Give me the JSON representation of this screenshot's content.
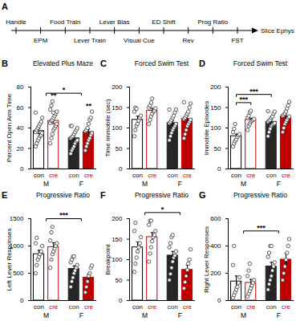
{
  "timeline": {
    "panel": "A",
    "steps": [
      {
        "label": "Handle",
        "side": "above"
      },
      {
        "label": "EPM",
        "side": "below"
      },
      {
        "label": "Food Train",
        "side": "above"
      },
      {
        "label": "Lever Train",
        "side": "below"
      },
      {
        "label": "Lever Bias",
        "side": "above"
      },
      {
        "label": "Visual Cue",
        "side": "below"
      },
      {
        "label": "ED Shift",
        "side": "above"
      },
      {
        "label": "Rev",
        "side": "below"
      },
      {
        "label": "Prog Ratio",
        "side": "above"
      },
      {
        "label": "FST",
        "side": "below"
      },
      {
        "label": "Slice Ephys",
        "side": "end"
      }
    ]
  },
  "chart_data": [
    {
      "type": "bar",
      "panel": "B",
      "title": "Elevated Plus Maze",
      "y_label": "Percent Open Arm Time",
      "categories": [
        "con",
        "cre",
        "con",
        "cre"
      ],
      "sex": [
        "M",
        "M",
        "F",
        "F"
      ],
      "colors": [
        "#000000",
        "#c00000",
        "#262626",
        "#c00000"
      ],
      "values": [
        37,
        47,
        30,
        36
      ],
      "errors": [
        2.5,
        2.8,
        2.0,
        3.0
      ],
      "points": [
        [
          22,
          25,
          28,
          30,
          32,
          33,
          35,
          36,
          38,
          40,
          42,
          44,
          46,
          50,
          55
        ],
        [
          25,
          30,
          34,
          38,
          40,
          42,
          44,
          45,
          47,
          48,
          50,
          52,
          54,
          56,
          58,
          62,
          66,
          55
        ],
        [
          15,
          18,
          20,
          22,
          25,
          27,
          28,
          30,
          31,
          32,
          34,
          36,
          38,
          40,
          42,
          42
        ],
        [
          18,
          22,
          25,
          28,
          30,
          33,
          35,
          37,
          38,
          40,
          44,
          48,
          50,
          56
        ]
      ],
      "ylim": [
        0,
        80
      ],
      "yticks": [
        0,
        20,
        40,
        60,
        80
      ],
      "significance": [
        {
          "bars": [
            1
          ],
          "label": "**"
        },
        {
          "bars": [
            3
          ],
          "label": "**"
        },
        {
          "groups": [
            "M",
            "F"
          ],
          "label": "*"
        }
      ]
    },
    {
      "type": "bar",
      "panel": "C",
      "title": "Forced Swim Test",
      "y_label": "Time Immobile (sec)",
      "categories": [
        "con",
        "cre",
        "con",
        "cre"
      ],
      "sex": [
        "M",
        "M",
        "F",
        "F"
      ],
      "colors": [
        "#000000",
        "#c00000",
        "#262626",
        "#c00000"
      ],
      "values": [
        120,
        142,
        112,
        122
      ],
      "errors": [
        9,
        6,
        6,
        7
      ],
      "points": [
        [
          80,
          95,
          105,
          110,
          118,
          125,
          130,
          140,
          150,
          147
        ],
        [
          110,
          120,
          128,
          135,
          140,
          142,
          148,
          150,
          155,
          162,
          172
        ],
        [
          70,
          80,
          88,
          95,
          100,
          105,
          110,
          112,
          115,
          120,
          125,
          130,
          138,
          145,
          145
        ],
        [
          75,
          85,
          95,
          105,
          110,
          115,
          120,
          122,
          125,
          130,
          135,
          140,
          150,
          160,
          163
        ]
      ],
      "ylim": [
        0,
        200
      ],
      "yticks": [
        0,
        50,
        100,
        150,
        200
      ],
      "significance": []
    },
    {
      "type": "bar",
      "panel": "D",
      "title": "Forced Swim Test",
      "y_label": "Immobile Episodes",
      "categories": [
        "con",
        "cre",
        "con",
        "cre"
      ],
      "sex": [
        "M",
        "M",
        "F",
        "F"
      ],
      "colors": [
        "#000000",
        "#c00000",
        "#262626",
        "#c00000"
      ],
      "values": [
        80,
        120,
        115,
        128
      ],
      "errors": [
        5,
        4,
        4,
        5
      ],
      "points": [
        [
          55,
          62,
          68,
          72,
          78,
          82,
          85,
          90,
          98,
          110
        ],
        [
          95,
          105,
          110,
          115,
          118,
          120,
          122,
          125,
          130,
          138,
          142
        ],
        [
          80,
          90,
          98,
          105,
          108,
          110,
          112,
          115,
          118,
          120,
          125,
          128,
          135,
          140,
          141
        ],
        [
          90,
          100,
          110,
          115,
          120,
          125,
          128,
          130,
          132,
          135,
          140,
          148,
          155,
          164
        ]
      ],
      "ylim": [
        0,
        200
      ],
      "yticks": [
        0,
        50,
        100,
        150,
        200
      ],
      "significance": [
        {
          "bars": [
            0,
            1
          ],
          "label": "***"
        },
        {
          "bars": [
            0,
            2
          ],
          "label": "***"
        }
      ]
    },
    {
      "type": "bar",
      "panel": "E",
      "title": "Progressive Ratio",
      "y_label": "Left Lever Responses",
      "categories": [
        "con",
        "cre",
        "con",
        "cre"
      ],
      "sex": [
        "M",
        "M",
        "F",
        "F"
      ],
      "colors": [
        "#000000",
        "#c00000",
        "#262626",
        "#c00000"
      ],
      "values": [
        850,
        980,
        580,
        420
      ],
      "errors": [
        70,
        80,
        55,
        70
      ],
      "points": [
        [
          500,
          650,
          750,
          800,
          850,
          900,
          1000,
          1050,
          1150
        ],
        [
          600,
          750,
          850,
          900,
          950,
          1000,
          1050,
          1100,
          1250,
          1350
        ],
        [
          250,
          350,
          420,
          500,
          550,
          600,
          650,
          700,
          750,
          800,
          810
        ],
        [
          150,
          250,
          350,
          450,
          500,
          600,
          640
        ]
      ],
      "ylim": [
        0,
        1500
      ],
      "yticks": [
        0,
        500,
        1000,
        1500
      ],
      "significance": [
        {
          "groups": [
            "M",
            "F"
          ],
          "label": "***"
        }
      ]
    },
    {
      "type": "bar",
      "panel": "F",
      "title": "Progressive Ratio",
      "y_label": "Breakpoint",
      "categories": [
        "con",
        "cre",
        "con",
        "cre"
      ],
      "sex": [
        "M",
        "M",
        "F",
        "F"
      ],
      "colors": [
        "#000000",
        "#c00000",
        "#262626",
        "#c00000"
      ],
      "values": [
        130,
        155,
        110,
        75
      ],
      "errors": [
        13,
        11,
        10,
        12
      ],
      "points": [
        [
          70,
          90,
          105,
          120,
          130,
          140,
          155,
          170,
          190
        ],
        [
          95,
          115,
          130,
          145,
          155,
          160,
          170,
          185,
          195,
          195
        ],
        [
          50,
          65,
          80,
          95,
          105,
          110,
          120,
          130,
          140,
          155,
          160
        ],
        [
          30,
          45,
          60,
          75,
          90,
          100,
          125
        ]
      ],
      "ylim": [
        0,
        200
      ],
      "yticks": [
        0,
        50,
        100,
        150,
        200
      ],
      "significance": [
        {
          "groups": [
            "M",
            "F"
          ],
          "label": "*"
        }
      ]
    },
    {
      "type": "bar",
      "panel": "G",
      "title": "Progressive Ratio",
      "y_label": "Right Lever Responses",
      "categories": [
        "con",
        "cre",
        "con",
        "cre"
      ],
      "sex": [
        "M",
        "M",
        "F",
        "F"
      ],
      "colors": [
        "#000000",
        "#c00000",
        "#262626",
        "#c00000"
      ],
      "values": [
        140,
        130,
        250,
        300
      ],
      "errors": [
        40,
        25,
        30,
        45
      ],
      "points": [
        [
          20,
          40,
          60,
          80,
          100,
          130,
          170,
          260,
          400
        ],
        [
          30,
          50,
          70,
          90,
          110,
          130,
          150,
          180,
          220,
          270
        ],
        [
          80,
          120,
          150,
          180,
          220,
          250,
          280,
          320,
          350,
          400,
          400
        ],
        [
          150,
          200,
          250,
          300,
          350,
          400,
          450
        ]
      ],
      "ylim": [
        0,
        600
      ],
      "yticks": [
        0,
        200,
        400,
        600
      ],
      "significance": [
        {
          "groups": [
            "M",
            "F"
          ],
          "label": "***"
        }
      ]
    }
  ]
}
